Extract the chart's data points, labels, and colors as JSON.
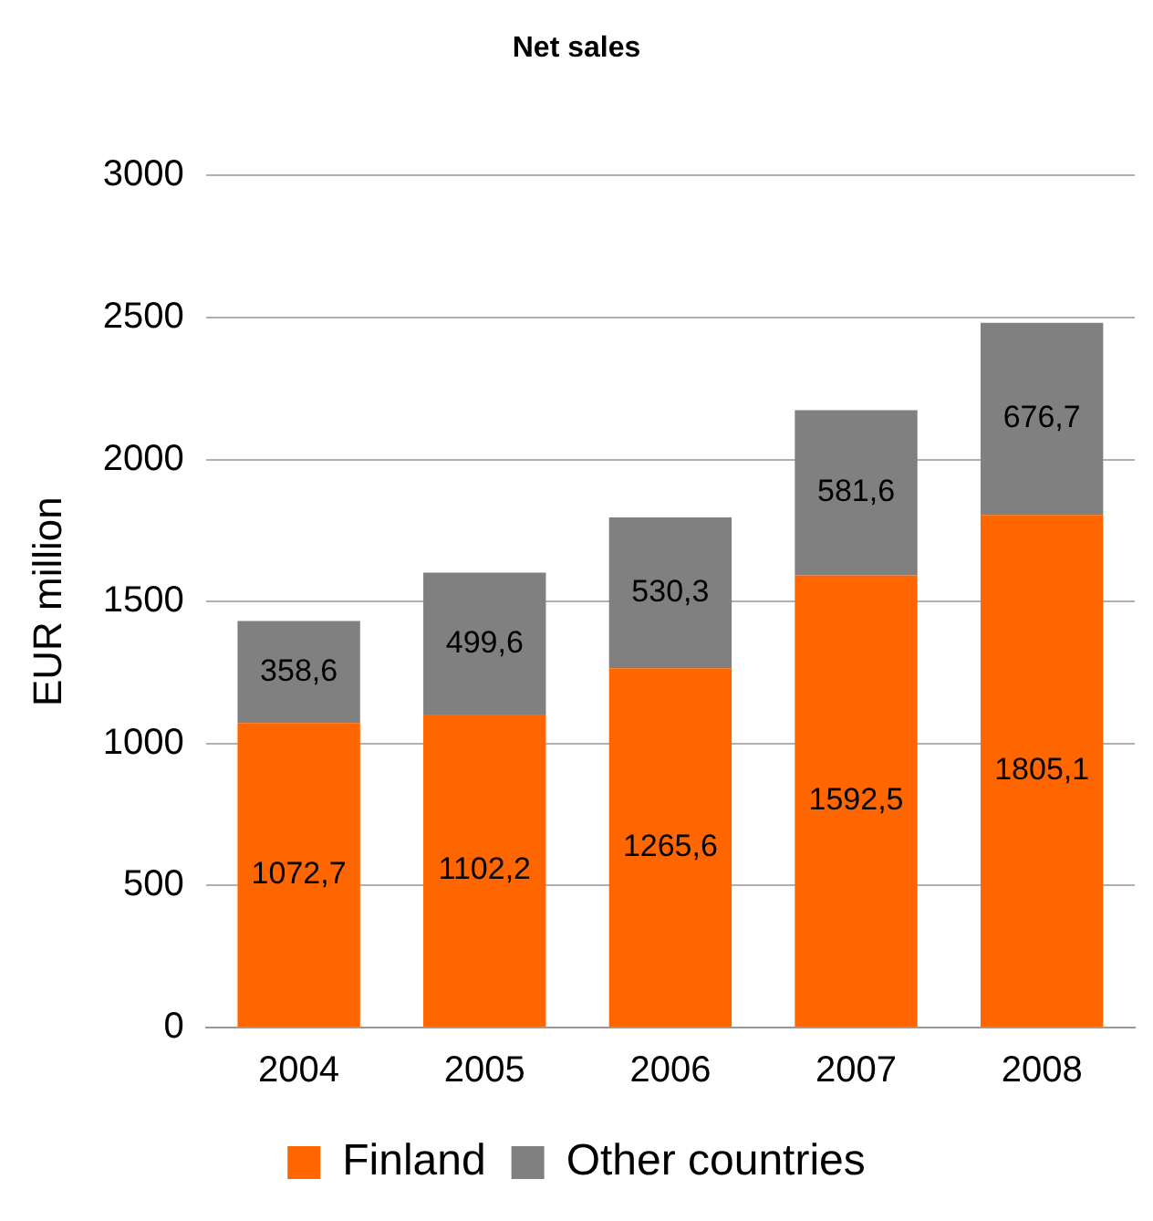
{
  "chart_data": {
    "type": "bar",
    "title": "Net sales",
    "ylabel": "EUR million",
    "categories": [
      "2004",
      "2005",
      "2006",
      "2007",
      "2008"
    ],
    "stacked": true,
    "ylim": [
      0,
      3000
    ],
    "yticks": [
      0,
      500,
      1000,
      1500,
      2000,
      2500,
      3000
    ],
    "grid": "y",
    "legend": "bottom",
    "series": [
      {
        "name": "Finland",
        "color": "#ff6600",
        "values": [
          1072.7,
          1102.2,
          1265.6,
          1592.5,
          1805.1
        ],
        "value_labels": [
          "1072,7",
          "1102,2",
          "1265,6",
          "1592,5",
          "1805,1"
        ]
      },
      {
        "name": "Other countries",
        "color": "#808080",
        "values": [
          358.6,
          499.6,
          530.3,
          581.6,
          676.7
        ],
        "value_labels": [
          "358,6",
          "499,6",
          "530,3",
          "581,6",
          "676,7"
        ]
      }
    ]
  }
}
